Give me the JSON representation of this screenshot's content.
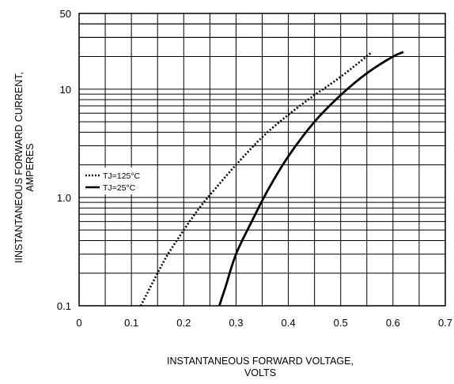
{
  "chart_data": {
    "type": "line",
    "title": "",
    "xlabel": [
      "INSTANTANEOUS FORWARD VOLTAGE,",
      "VOLTS"
    ],
    "ylabel": [
      "IINSTANTANEOUS FORWARD CURRENT,",
      "AMPERES"
    ],
    "xlim": [
      0,
      0.7
    ],
    "ylim": [
      0.1,
      50
    ],
    "yscale": "log",
    "grid": true,
    "legend_position": "left-middle",
    "x_ticks": [
      {
        "value": 0,
        "label": "0"
      },
      {
        "value": 0.1,
        "label": "0.1"
      },
      {
        "value": 0.2,
        "label": "0.2"
      },
      {
        "value": 0.3,
        "label": "0.3"
      },
      {
        "value": 0.4,
        "label": "0.4"
      },
      {
        "value": 0.5,
        "label": "0.5"
      },
      {
        "value": 0.6,
        "label": "0.6"
      },
      {
        "value": 0.7,
        "label": "0.7"
      }
    ],
    "y_ticks": [
      {
        "value": 0.1,
        "label": "0.1"
      },
      {
        "value": 1.0,
        "label": "1.0"
      },
      {
        "value": 10,
        "label": "10"
      },
      {
        "value": 50,
        "label": "50"
      }
    ],
    "series": [
      {
        "name": "TJ=125°C",
        "style": "dotted",
        "color": "#000000",
        "x": [
          0.118,
          0.13,
          0.15,
          0.17,
          0.2,
          0.23,
          0.26,
          0.3,
          0.35,
          0.4,
          0.45,
          0.5,
          0.56
        ],
        "y": [
          0.1,
          0.13,
          0.2,
          0.3,
          0.5,
          0.8,
          1.2,
          2.0,
          3.6,
          5.8,
          8.8,
          13,
          22
        ]
      },
      {
        "name": "TJ=25°C",
        "style": "solid",
        "color": "#000000",
        "x": [
          0.268,
          0.28,
          0.3,
          0.33,
          0.36,
          0.4,
          0.45,
          0.5,
          0.55,
          0.6,
          0.62
        ],
        "y": [
          0.1,
          0.15,
          0.3,
          0.6,
          1.15,
          2.4,
          5.0,
          8.8,
          14,
          20,
          22
        ]
      }
    ]
  }
}
